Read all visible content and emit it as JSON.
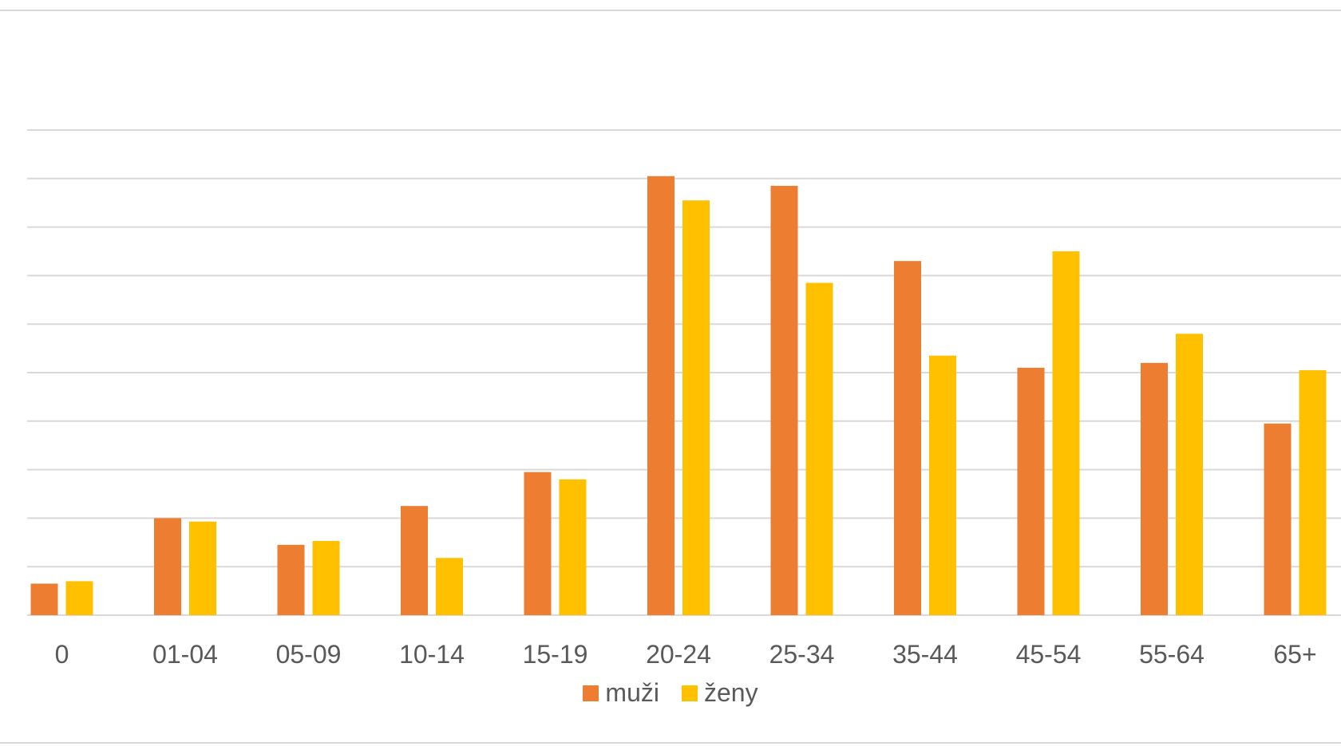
{
  "colors": {
    "muzi": "#ED7D31",
    "zeny": "#FFC000",
    "grid": "#d9d9d9",
    "axis_text": "#595959"
  },
  "chart_data": {
    "type": "bar",
    "title": "",
    "xlabel": "",
    "ylabel": "",
    "grid": true,
    "y_axis_labels_visible": false,
    "ylim": [
      0,
      11
    ],
    "legend_position": "bottom",
    "categories": [
      "0",
      "01-04",
      "05-09",
      "10-14",
      "15-19",
      "20-24",
      "25-34",
      "35-44",
      "45-54",
      "55-64",
      "65+"
    ],
    "series": [
      {
        "name": "muži",
        "color": "#ED7D31",
        "values": [
          0.65,
          2.0,
          1.45,
          2.25,
          2.95,
          9.05,
          8.85,
          7.3,
          5.1,
          5.2,
          3.95
        ]
      },
      {
        "name": "ženy",
        "color": "#FFC000",
        "values": [
          0.7,
          1.93,
          1.53,
          1.18,
          2.8,
          8.55,
          6.85,
          5.35,
          7.5,
          5.8,
          5.05
        ]
      }
    ]
  }
}
